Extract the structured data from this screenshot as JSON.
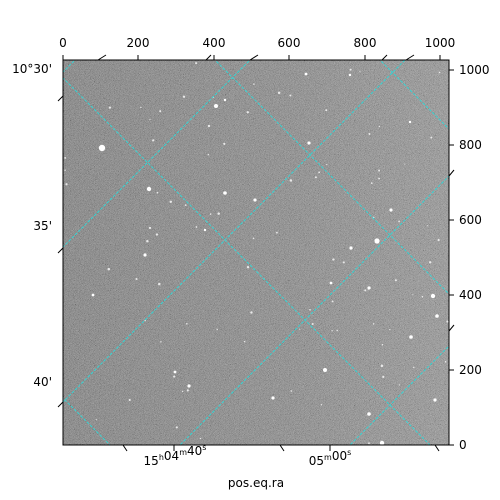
{
  "figure": {
    "xlabel": "pos.eq.ra",
    "colors": {
      "grid": "#35d4d4",
      "background_sky": "#7a7a7a",
      "axes": "#000000"
    },
    "x_pixel_axis": {
      "ticks": [
        {
          "value": 0,
          "label": "0"
        },
        {
          "value": 200,
          "label": "200"
        },
        {
          "value": 400,
          "label": "400"
        },
        {
          "value": 600,
          "label": "600"
        },
        {
          "value": 800,
          "label": "800"
        },
        {
          "value": 1000,
          "label": "1000"
        }
      ],
      "range": [
        0,
        1024
      ]
    },
    "y_pixel_axis": {
      "ticks": [
        {
          "value": 0,
          "label": "0"
        },
        {
          "value": 200,
          "label": "200"
        },
        {
          "value": 400,
          "label": "400"
        },
        {
          "value": 600,
          "label": "600"
        },
        {
          "value": 800,
          "label": "800"
        },
        {
          "value": 1000,
          "label": "1000"
        }
      ],
      "range": [
        0,
        1024
      ]
    },
    "dec_labels": [
      {
        "label": "10°30'"
      },
      {
        "label": "35'"
      },
      {
        "label": "40'"
      }
    ],
    "ra_labels": [
      {
        "label": "15h04m40s"
      },
      {
        "label": "05m00s"
      }
    ]
  }
}
